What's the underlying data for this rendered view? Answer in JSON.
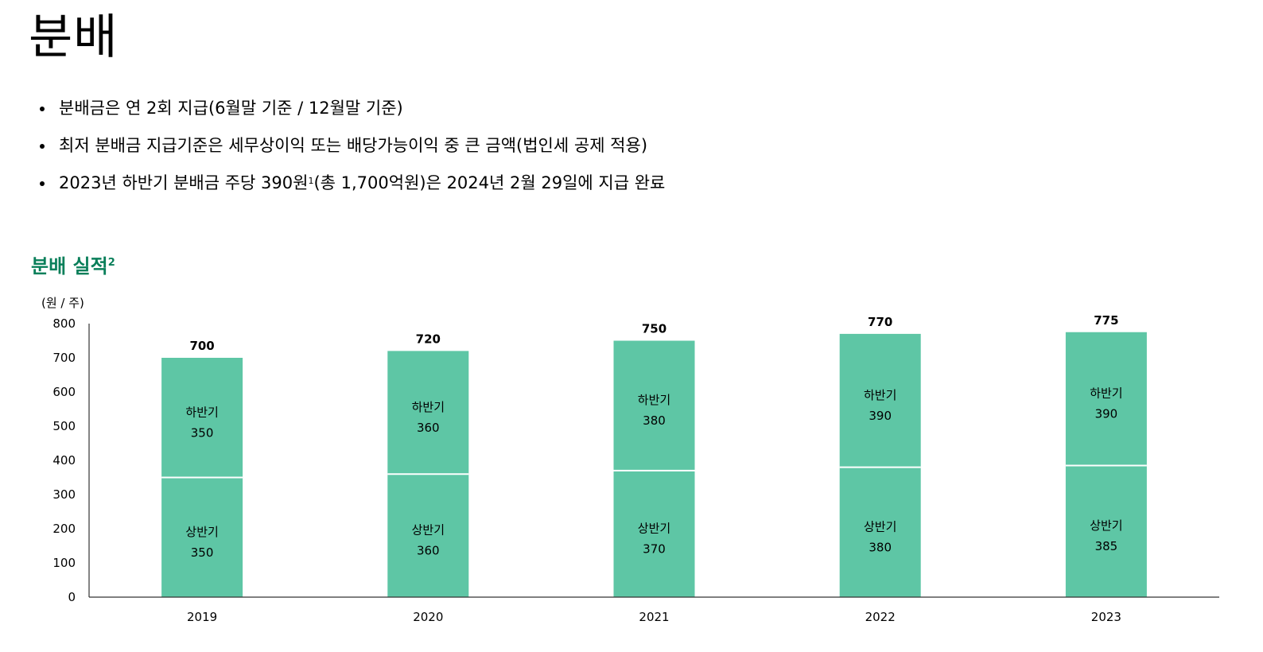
{
  "page": {
    "title": "분배",
    "bullets": [
      {
        "text": "분배금은 연 2회 지급(6월말 기준 / 12월말 기준)",
        "sup": "",
        "after": ""
      },
      {
        "text": "최저 분배금 지급기준은 세무상이익 또는 배당가능이익 중 큰 금액(법인세 공제 적용)",
        "sup": "",
        "after": ""
      },
      {
        "text": "2023년 하반기 분배금 주당 390원",
        "sup": "1",
        "after": "(총 1,700억원)은 2024년 2월 29일에 지급 완료"
      }
    ],
    "section_title": "분배 실적",
    "section_sup": "2"
  },
  "chart_data": {
    "type": "bar",
    "stacked": true,
    "unit_label": "(원 / 주)",
    "categories": [
      "2019",
      "2020",
      "2021",
      "2022",
      "2023"
    ],
    "series": [
      {
        "name": "상반기",
        "values": [
          350,
          360,
          370,
          380,
          385
        ]
      },
      {
        "name": "하반기",
        "values": [
          350,
          360,
          380,
          390,
          390
        ]
      }
    ],
    "totals": [
      700,
      720,
      750,
      770,
      775
    ],
    "ylim": [
      0,
      800
    ],
    "yticks": [
      0,
      100,
      200,
      300,
      400,
      500,
      600,
      700,
      800
    ],
    "grid": false,
    "bar_color": "#5ec6a5",
    "legend": "none"
  }
}
